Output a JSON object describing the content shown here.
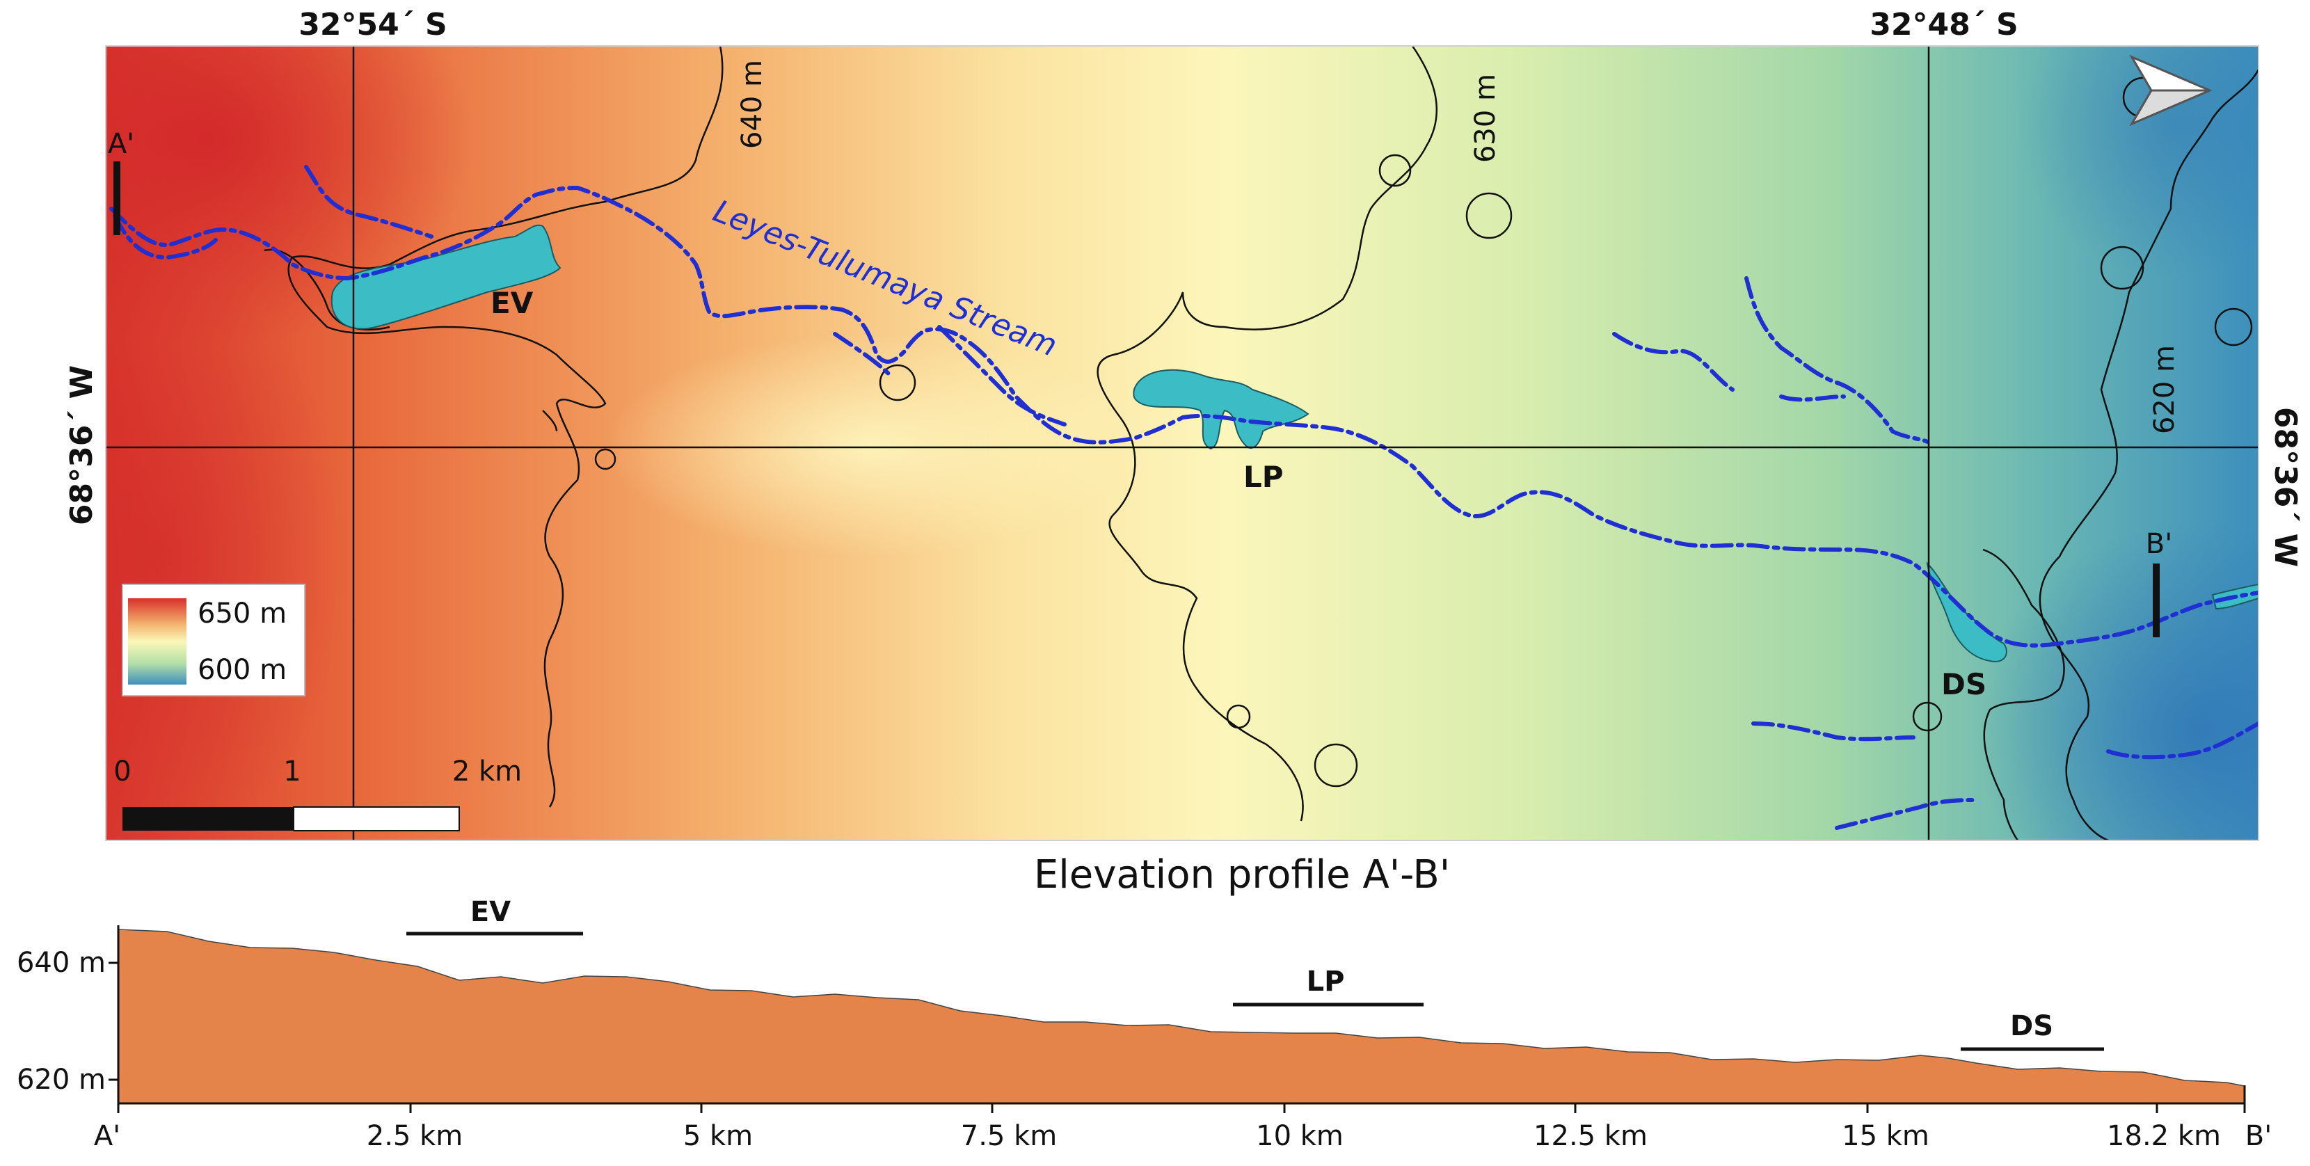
{
  "map": {
    "coordinates": {
      "top_left": "32°54´ S",
      "top_right": "32°48´ S",
      "left": "68°36´ W",
      "right": "68°36´ W"
    },
    "contours": [
      "640 m",
      "630 m",
      "620 m"
    ],
    "stream_label": "Leyes-Tulumaya Stream",
    "features": [
      "EV",
      "LP",
      "DS"
    ],
    "profile_endpoints": [
      "A'",
      "B'"
    ],
    "legend": {
      "max_label": "650 m",
      "min_label": "600 m",
      "colors": [
        "#d7302a",
        "#f3b36e",
        "#fbf7b8",
        "#b5e0a7",
        "#3f8fbd"
      ]
    },
    "scale_bar": {
      "labels": [
        "0",
        "1",
        "2 km"
      ]
    },
    "colors": {
      "stream": "#1f2fd1",
      "water": "#3cbcc4",
      "contour": "#111111"
    },
    "north_arrow": "north-arrow"
  },
  "profile": {
    "title": "Elevation profile A'-B'",
    "y_ticks": [
      "640 m",
      "620 m"
    ],
    "x_ticks": [
      "A'",
      "2.5 km",
      "5 km",
      "7.5 km",
      "10 km",
      "12.5 km",
      "15 km",
      "18.2 km",
      "B'"
    ],
    "segments": [
      "EV",
      "LP",
      "DS"
    ],
    "fill_color": "#e4844b"
  }
}
